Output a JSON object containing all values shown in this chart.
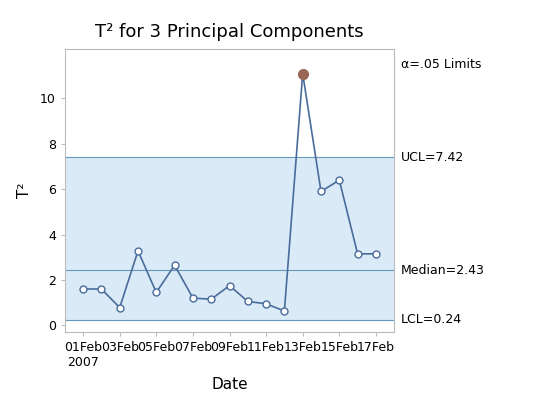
{
  "title": "T² for 3 Principal Components",
  "xlabel": "Date",
  "ylabel": "T²",
  "x_labels": [
    "01Feb\n2007",
    "03Feb",
    "05Feb",
    "07Feb",
    "09Feb",
    "11Feb",
    "13Feb",
    "15Feb",
    "17Feb"
  ],
  "x_positions": [
    1,
    3,
    5,
    7,
    9,
    11,
    13,
    15,
    17
  ],
  "data_x": [
    1,
    2,
    3,
    4,
    5,
    6,
    7,
    8,
    9,
    10,
    11,
    12,
    13,
    14,
    15,
    16,
    17
  ],
  "data_y": [
    1.6,
    1.6,
    0.78,
    3.28,
    1.45,
    2.65,
    1.2,
    1.15,
    1.75,
    1.05,
    0.95,
    0.63,
    11.1,
    5.9,
    6.4,
    3.15,
    3.15
  ],
  "UCL": 7.42,
  "LCL": 0.24,
  "Median": 2.43,
  "alpha_label": "α=.05 Limits",
  "UCL_label": "UCL=7.42",
  "Median_label": "Median=2.43",
  "LCL_label": "LCL=0.24",
  "alpha_y": 11.5,
  "line_color": "#4a6c9b",
  "marker_facecolor": "white",
  "marker_edgecolor": "#4a6c9b",
  "outlier_color": "#996655",
  "fill_color": "#daeaf7",
  "hline_color": "#6699bb",
  "ylim": [
    -0.3,
    12.2
  ],
  "xlim": [
    0.0,
    18.0
  ],
  "bg_color": "#ffffff",
  "plot_bg": "#ffffff",
  "outlier_index": 12,
  "title_fontsize": 13,
  "label_fontsize": 11,
  "tick_fontsize": 9,
  "annot_fontsize": 9
}
